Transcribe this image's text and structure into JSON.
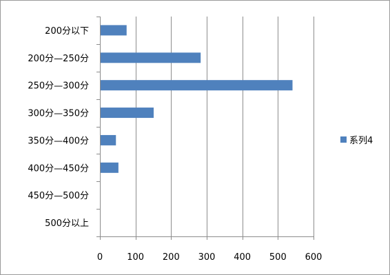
{
  "chart_data": {
    "type": "bar",
    "orientation": "horizontal",
    "title": "",
    "xlabel": "",
    "ylabel": "",
    "categories": [
      "200分以下",
      "200分—250分",
      "250分—300分",
      "300分—350分",
      "350分—400分",
      "400分—450分",
      "450分—500分",
      "500分以上"
    ],
    "series": [
      {
        "name": "系列4",
        "values": [
          75,
          283,
          541,
          151,
          45,
          52,
          0,
          0
        ],
        "color": "#4f81bd"
      }
    ],
    "xlim": [
      0,
      600
    ],
    "xticks": [
      0,
      100,
      200,
      300,
      400,
      500,
      600
    ],
    "grid": "vertical",
    "legend_position": "right"
  }
}
